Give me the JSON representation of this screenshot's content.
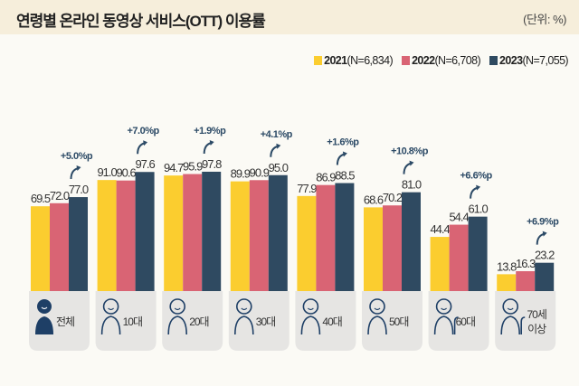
{
  "chart_data": {
    "type": "bar",
    "title": "연령별 온라인 동영상 서비스(OTT) 이용률",
    "unit": "(단위: %)",
    "categories": [
      "전체",
      "10대",
      "20대",
      "30대",
      "40대",
      "50대",
      "60대",
      "70세 이상"
    ],
    "series": [
      {
        "name": "2021",
        "n": "(N=6,834)",
        "color": "#fbcd2f",
        "values": [
          69.5,
          91.0,
          94.7,
          89.9,
          77.9,
          68.6,
          44.4,
          13.8
        ]
      },
      {
        "name": "2022",
        "n": "(N=6,708)",
        "color": "#d96474",
        "values": [
          72.0,
          90.6,
          95.9,
          90.9,
          86.9,
          70.2,
          54.4,
          16.3
        ]
      },
      {
        "name": "2023",
        "n": "(N=7,055)",
        "color": "#2f4a61",
        "values": [
          77.0,
          97.6,
          97.8,
          95.0,
          88.5,
          81.0,
          61.0,
          23.2
        ]
      }
    ],
    "annotations": [
      "+5.0%p",
      "+7.0%p",
      "+1.9%p",
      "+4.1%p",
      "+1.6%p",
      "+10.8%p",
      "+6.6%p",
      "+6.9%p"
    ],
    "value_labels": [
      [
        "69.5",
        "91.0",
        "94.7",
        "89.9",
        "77.9",
        "68.6",
        "44.4",
        "13.8"
      ],
      [
        "72.0",
        "90.6",
        "95.9",
        "90.9",
        "86.9",
        "70.2",
        "54.4",
        "16.3"
      ],
      [
        "77.0",
        "97.6",
        "97.8",
        "95.0",
        "88.5",
        "81.0",
        "61.0",
        "23.2"
      ]
    ],
    "ylim": [
      0,
      100
    ],
    "grid": false,
    "legend": "top-right",
    "category_icons": [
      "person-silhouette-icon",
      "child-icon",
      "young-adult-icon",
      "adult-icon",
      "adult-icon",
      "middle-aged-icon",
      "senior-icon",
      "elderly-with-cane-icon"
    ]
  }
}
